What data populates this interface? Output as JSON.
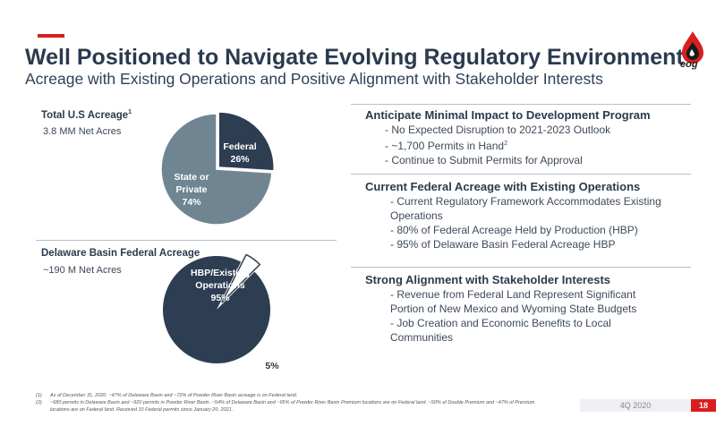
{
  "header": {
    "title": "Well Positioned to Navigate Evolving Regulatory Environment",
    "subtitle": "Acreage with Existing Operations and Positive Alignment with Stakeholder Interests"
  },
  "logo": {
    "text": "eog",
    "icon": "flame-drop-logo"
  },
  "colors": {
    "accent": "#d81e1e",
    "navy": "#2d3e52",
    "slate": "#6f8592"
  },
  "left": {
    "acreage": {
      "title": "Total U.S Acreage",
      "sup": "1",
      "value": "3.8 MM Net Acres"
    },
    "delaware": {
      "title": "Delaware Basin Federal Acreage",
      "value": "~190 M Net Acres"
    }
  },
  "chart_data": [
    {
      "type": "pie",
      "slices": [
        {
          "label": "Federal",
          "value": 26,
          "display": "26%",
          "color": "#2d3e52"
        },
        {
          "label": "State or Private",
          "value": 74,
          "display": "74%",
          "color": "#6f8592"
        }
      ]
    },
    {
      "type": "pie",
      "slices": [
        {
          "label": "HBP/Existing Operations",
          "value": 95,
          "display": "95%",
          "color": "#2d3e52"
        },
        {
          "label": "",
          "value": 5,
          "display": "5%",
          "color": "#ffffff"
        }
      ]
    }
  ],
  "pie_labels": {
    "federal": [
      "Federal",
      "26%"
    ],
    "state": [
      "State or",
      "Private",
      "74%"
    ],
    "hbp": [
      "HBP/Existing",
      "Operations",
      "95%"
    ],
    "other": "5%"
  },
  "right": [
    {
      "heading": "Anticipate Minimal Impact to Development Program",
      "bullets": [
        "- No Expected Disruption to 2021-2023 Outlook",
        "- ~1,700 Permits in Hand",
        "- Continue to Submit Permits for Approval"
      ],
      "bullet_sup": "2"
    },
    {
      "heading": "Current Federal Acreage with Existing Operations",
      "bullets": [
        "- Current Regulatory Framework Accommodates Existing Operations",
        "- 80% of Federal Acreage Held by Production (HBP)",
        "- 95% of Delaware Basin Federal Acreage HBP"
      ]
    },
    {
      "heading": "Strong Alignment with Stakeholder Interests",
      "bullets": [
        "- Revenue from Federal Land Represent Significant Portion of New Mexico and Wyoming State Budgets",
        "- Job Creation and Economic Benefits to Local Communities"
      ]
    }
  ],
  "footnotes": [
    {
      "num": "(1)",
      "text": "As of December 31, 2020.  ~47% of Delaware Basin and ~72% of Powder River Basin acreage is on Federal land."
    },
    {
      "num": "(2)",
      "text": "~680 permits in Delaware Basin and ~920 permits in Powder River Basin. ~54% of Delaware Basin and ~95% of Powder River Basin Premium locations are on Federal land. ~50% of Double Premium and ~47% of Premium locations are on Federal land. Received 10 Federal permits since January 20, 2021."
    }
  ],
  "footer": {
    "date": "4Q 2020",
    "page": "18"
  }
}
